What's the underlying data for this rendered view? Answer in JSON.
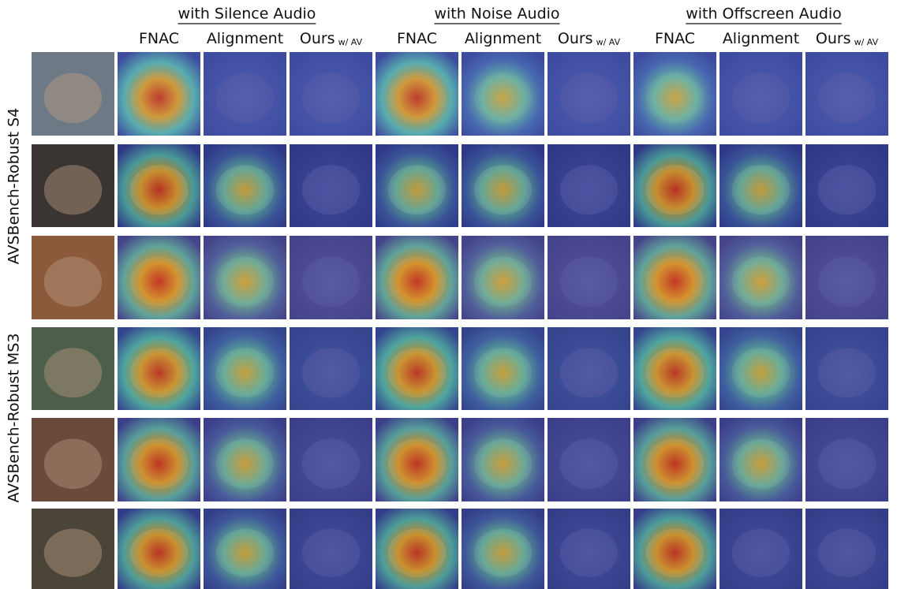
{
  "groups": [
    "with Silence Audio",
    "with Noise Audio",
    "with Offscreen Audio"
  ],
  "columns": [
    {
      "label": "FNAC"
    },
    {
      "label": "Alignment"
    },
    {
      "label": "Ours",
      "subscript": "w/ AV"
    },
    {
      "label": "FNAC"
    },
    {
      "label": "Alignment"
    },
    {
      "label": "Ours",
      "subscript": "w/ AV"
    },
    {
      "label": "FNAC"
    },
    {
      "label": "Alignment"
    },
    {
      "label": "Ours",
      "subscript": "w/ AV"
    }
  ],
  "row_groups": [
    "AVSBench-Robust S4",
    "AVSBench-Robust MS3"
  ]
}
